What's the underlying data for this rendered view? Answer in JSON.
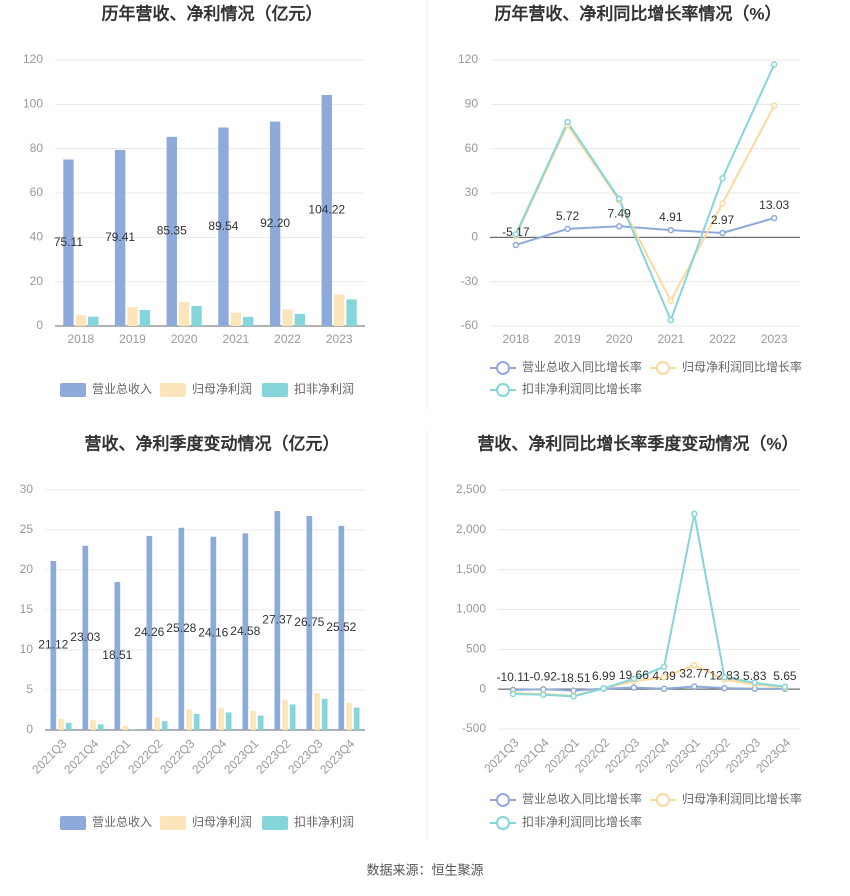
{
  "chart_data": [
    {
      "type": "bar",
      "title": "历年营收、净利情况（亿元）",
      "categories": [
        "2018",
        "2019",
        "2020",
        "2021",
        "2022",
        "2023"
      ],
      "series": [
        {
          "name": "营业总收入",
          "color": "#8eaadb",
          "labels": true,
          "values": [
            75.11,
            79.41,
            85.35,
            89.54,
            92.2,
            104.22
          ],
          "value_labels": [
            "75.11",
            "79.41",
            "85.35",
            "89.54",
            "92.20",
            "104.22"
          ]
        },
        {
          "name": "归母净利润",
          "color": "#fce4bb",
          "values": [
            5,
            8.5,
            10.8,
            6,
            7.5,
            14.2
          ]
        },
        {
          "name": "扣非净利润",
          "color": "#84d6da",
          "values": [
            4.2,
            7.2,
            9,
            4.1,
            5.5,
            12
          ]
        }
      ],
      "ylim": [
        0,
        120
      ],
      "yticks": [
        0,
        20,
        40,
        60,
        80,
        100,
        120
      ],
      "grid": true
    },
    {
      "type": "line",
      "title": "历年营收、净利同比增长率情况（%）",
      "categories": [
        "2018",
        "2019",
        "2020",
        "2021",
        "2022",
        "2023"
      ],
      "series": [
        {
          "name": "营业总收入同比增长率",
          "color": "#8eaadb",
          "labels": true,
          "values": [
            -5.17,
            5.72,
            7.49,
            4.91,
            2.97,
            13.03
          ]
        },
        {
          "name": "归母净利润同比增长率",
          "color": "#fdd99b",
          "values": [
            1,
            76,
            25,
            -43,
            23,
            89
          ]
        },
        {
          "name": "扣非净利润同比增长率",
          "color": "#84d6da",
          "values": [
            2,
            78,
            26,
            -56,
            40,
            117
          ]
        }
      ],
      "ylim": [
        -60,
        120
      ],
      "yticks": [
        -60,
        -30,
        0,
        30,
        60,
        90,
        120
      ],
      "grid": true
    },
    {
      "type": "bar",
      "title": "营收、净利季度变动情况（亿元）",
      "categories": [
        "2021Q3",
        "2021Q4",
        "2022Q1",
        "2022Q2",
        "2022Q3",
        "2022Q4",
        "2023Q1",
        "2023Q2",
        "2023Q3",
        "2023Q4"
      ],
      "series": [
        {
          "name": "营业总收入",
          "color": "#8eaadb",
          "labels": true,
          "values": [
            21.12,
            23.03,
            18.51,
            24.26,
            25.28,
            24.16,
            24.58,
            27.37,
            26.75,
            25.52
          ]
        },
        {
          "name": "归母净利润",
          "color": "#fce4bb",
          "values": [
            1.4,
            1.2,
            0.5,
            1.6,
            2.6,
            2.7,
            2.4,
            3.8,
            4.6,
            3.4
          ]
        },
        {
          "name": "扣非净利润",
          "color": "#84d6da",
          "values": [
            0.9,
            0.7,
            0.1,
            1.1,
            2,
            2.2,
            1.8,
            3.2,
            3.9,
            2.8
          ]
        }
      ],
      "ylim": [
        0,
        30
      ],
      "yticks": [
        0,
        5,
        10,
        15,
        20,
        25,
        30
      ],
      "grid": true
    },
    {
      "type": "line",
      "title": "营收、净利同比增长率季度变动情况（%）",
      "categories": [
        "2021Q3",
        "2021Q4",
        "2022Q1",
        "2022Q2",
        "2022Q3",
        "2022Q4",
        "2023Q1",
        "2023Q2",
        "2023Q3",
        "2023Q4"
      ],
      "series": [
        {
          "name": "营业总收入同比增长率",
          "color": "#8eaadb",
          "labels": true,
          "values": [
            -10.11,
            -0.92,
            -18.51,
            6.99,
            19.66,
            4.89,
            32.77,
            12.83,
            5.83,
            5.65
          ]
        },
        {
          "name": "归母净利润同比增长率",
          "color": "#fdd99b",
          "values": [
            -50,
            -60,
            -80,
            10,
            100,
            150,
            300,
            120,
            60,
            20
          ]
        },
        {
          "name": "扣非净利润同比增长率",
          "color": "#84d6da",
          "values": [
            -60,
            -70,
            -90,
            10,
            130,
            280,
            2200,
            150,
            80,
            30
          ]
        }
      ],
      "ylim": [
        -500,
        2500
      ],
      "yticks": [
        -500,
        0,
        500,
        {
          "value": 1000,
          "label": "1,000"
        },
        {
          "value": 1500,
          "label": "1,500"
        },
        {
          "value": 2000,
          "label": "2,000"
        },
        {
          "value": 2500,
          "label": "2,500"
        }
      ],
      "grid": true
    }
  ],
  "source": "数据来源：恒生聚源"
}
